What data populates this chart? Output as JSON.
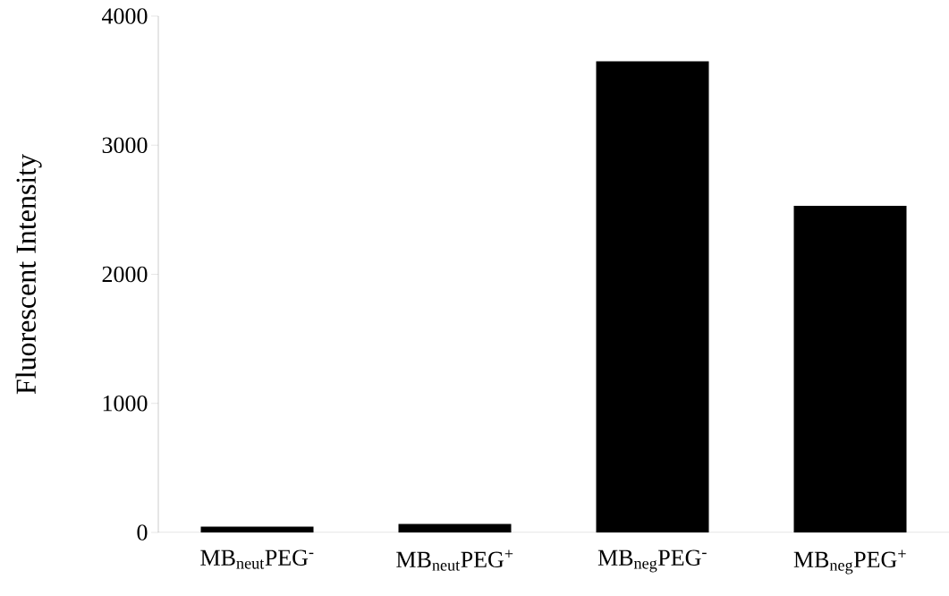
{
  "chart_data": {
    "type": "bar",
    "ylabel": "Fluorescent Intensity",
    "categories": [
      "MB$_{neut}$PEG$^{-}$",
      "MB$_{neut}$PEG$^{+}$",
      "MB$_{neg}$PEG$^{-}$",
      "MB$_{neg}$PEG$^{+}$"
    ],
    "values": [
      45,
      65,
      3650,
      2530
    ],
    "color": "#000000",
    "ylim": [
      0,
      4000
    ],
    "yticks": [
      0,
      1000,
      2000,
      3000,
      4000
    ]
  }
}
